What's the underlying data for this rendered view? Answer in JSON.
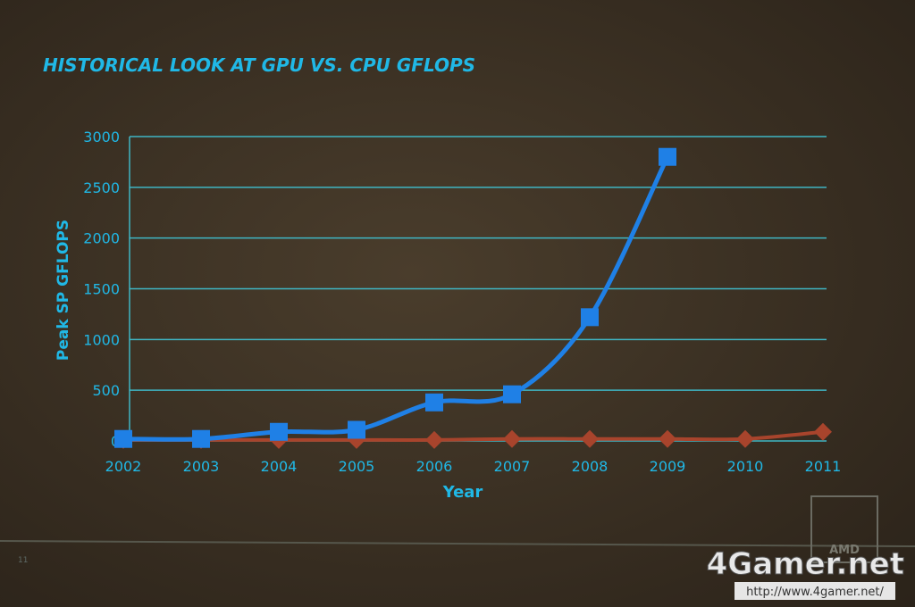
{
  "chart_data": {
    "type": "line",
    "title": "HISTORICAL LOOK AT GPU VS. CPU GFLOPS",
    "y_label": "Peak SP GFLOPS",
    "x_label": "Year",
    "categories": [
      "2002",
      "2003",
      "2004",
      "2005",
      "2006",
      "2007",
      "2008",
      "2009",
      "2010",
      "2011"
    ],
    "series": [
      {
        "color": "#1f80e6",
        "marker": "square",
        "values": [
          20,
          20,
          90,
          110,
          380,
          460,
          1220,
          2800,
          null,
          null
        ]
      },
      {
        "color": "#a8442c",
        "marker": "diamond",
        "values": [
          10,
          10,
          10,
          10,
          10,
          20,
          20,
          20,
          20,
          90
        ]
      }
    ],
    "ylim": [
      0,
      3000
    ],
    "yticks": [
      0,
      500,
      1000,
      1500,
      2000,
      2500,
      3000
    ],
    "grid": true
  },
  "slide_number": "11",
  "logo": "AMD",
  "watermark": {
    "brand": "4Gamer.net",
    "url": "http://www.4gamer.net/"
  }
}
